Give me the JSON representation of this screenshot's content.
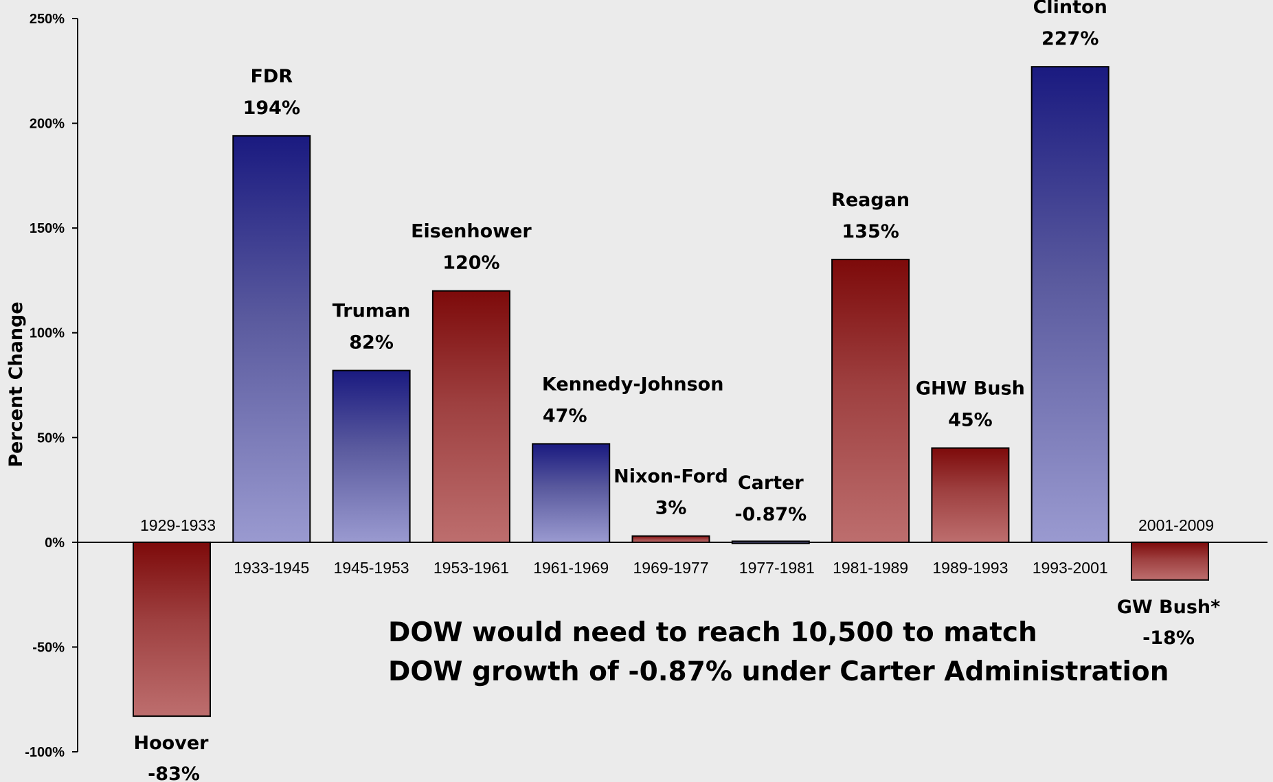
{
  "chart_data": {
    "type": "bar",
    "title": "",
    "ylabel": "Percent Change",
    "xlabel": "",
    "ylim": [
      -100,
      250
    ],
    "yticks": [
      -100,
      -50,
      0,
      50,
      100,
      150,
      200,
      250
    ],
    "ytick_labels": [
      "-100%",
      "-50%",
      "0%",
      "50%",
      "100%",
      "150%",
      "200%",
      "250%"
    ],
    "grid": false,
    "legend": "none",
    "bars": [
      {
        "name": "Hoover",
        "period": "1929-1933",
        "value": -83,
        "value_label": "-83%",
        "party": "R"
      },
      {
        "name": "FDR",
        "period": "1933-1945",
        "value": 194,
        "value_label": "194%",
        "party": "D"
      },
      {
        "name": "Truman",
        "period": "1945-1953",
        "value": 82,
        "value_label": "82%",
        "party": "D"
      },
      {
        "name": "Eisenhower",
        "period": "1953-1961",
        "value": 120,
        "value_label": "120%",
        "party": "R"
      },
      {
        "name": "Kennedy-Johnson",
        "period": "1961-1969",
        "value": 47,
        "value_label": "47%",
        "party": "D"
      },
      {
        "name": "Nixon-Ford",
        "period": "1969-1977",
        "value": 3,
        "value_label": "3%",
        "party": "R"
      },
      {
        "name": "Carter",
        "period": "1977-1981",
        "value": -0.87,
        "value_label": "-0.87%",
        "party": "D"
      },
      {
        "name": "Reagan",
        "period": "1981-1989",
        "value": 135,
        "value_label": "135%",
        "party": "R"
      },
      {
        "name": "GHW Bush",
        "period": "1989-1993",
        "value": 45,
        "value_label": "45%",
        "party": "R"
      },
      {
        "name": "Clinton",
        "period": "1993-2001",
        "value": 227,
        "value_label": "227%",
        "party": "D"
      },
      {
        "name": "GW Bush*",
        "period": "2001-2009",
        "value": -18,
        "value_label": "-18%",
        "party": "R"
      }
    ],
    "annotations": [
      "DOW would need to reach 10,500 to match",
      "DOW growth of -0.87% under Carter Administration"
    ],
    "colors": {
      "D_dark": "#1a1a80",
      "D_light": "#9696cc",
      "R_dark": "#7d0a0a",
      "R_light": "#b86a6a",
      "background": "#ebebeb"
    }
  }
}
